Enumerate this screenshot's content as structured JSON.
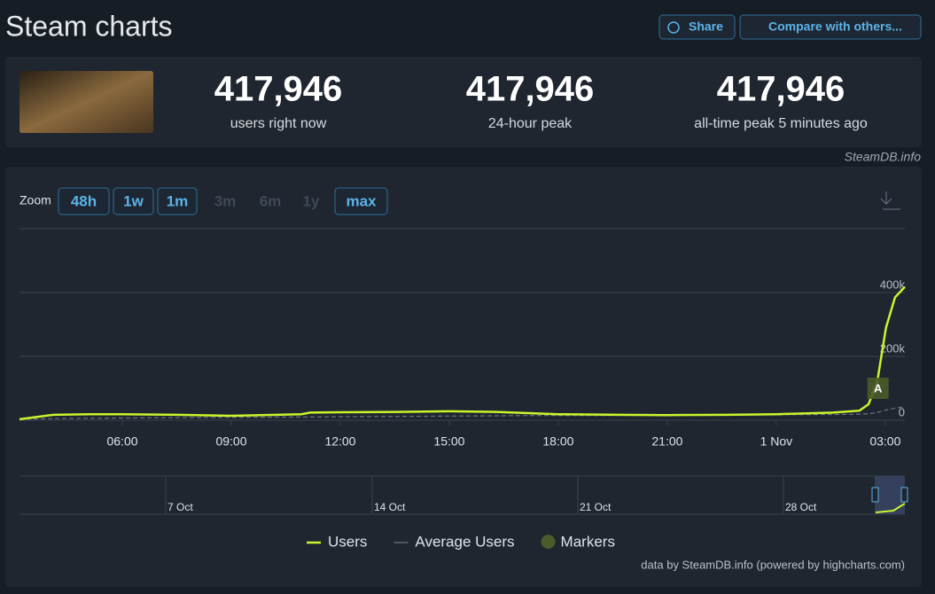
{
  "header": {
    "title": "Steam charts",
    "buttons": [
      "Share",
      "Compare with others..."
    ]
  },
  "stats": [
    {
      "value": "417,946",
      "label": "users right now"
    },
    {
      "value": "417,946",
      "label": "24-hour peak"
    },
    {
      "value": "417,946",
      "label": "all-time peak 5 minutes ago"
    }
  ],
  "credit_top": "SteamDB.info",
  "zoom": {
    "label": "Zoom",
    "options": [
      "48h",
      "1w",
      "1m",
      "3m",
      "6m",
      "1y",
      "max"
    ],
    "enabled": [
      true,
      true,
      true,
      false,
      false,
      false,
      true
    ]
  },
  "chart_data": {
    "type": "line",
    "x": [
      3.17,
      4.1,
      5.07,
      6,
      7.51,
      9,
      10.93,
      11.17,
      12,
      13.61,
      15,
      16.29,
      18,
      19.71,
      21,
      22.63,
      24,
      25.56,
      26.29,
      26.54,
      26.78,
      27.02,
      27.27,
      27.54
    ],
    "series": [
      {
        "name": "Users",
        "color": "#c8f52c",
        "values": [
          3000,
          17000,
          19000,
          19000,
          17000,
          14000,
          19000,
          24000,
          25000,
          26000,
          28000,
          26000,
          19000,
          17000,
          16000,
          17000,
          19000,
          24000,
          30000,
          50000,
          120000,
          290000,
          385000,
          417946
        ]
      },
      {
        "name": "Average Users",
        "color": "#6b7480",
        "values": [
          3000,
          5000,
          6000,
          7000,
          8000,
          9000,
          10000,
          10000,
          11000,
          12000,
          13000,
          14000,
          15000,
          15000,
          16000,
          16000,
          17000,
          18000,
          19000,
          20000,
          24000,
          32000,
          38000,
          42000
        ]
      }
    ],
    "xlim": [
      3.17,
      27.54
    ],
    "xticks": [
      {
        "value": 6,
        "label": "06:00"
      },
      {
        "value": 9,
        "label": "09:00"
      },
      {
        "value": 12,
        "label": "12:00"
      },
      {
        "value": 15,
        "label": "15:00"
      },
      {
        "value": 18,
        "label": "18:00"
      },
      {
        "value": 21,
        "label": "21:00"
      },
      {
        "value": 24,
        "label": "1 Nov"
      },
      {
        "value": 27,
        "label": "03:00"
      }
    ],
    "ylim": [
      0,
      600000
    ],
    "yticks": [
      0,
      {
        "value": 200000,
        "label": "200k"
      },
      {
        "value": 400000,
        "label": "400k"
      }
    ],
    "grid": true,
    "annotations": [
      {
        "label": "A",
        "x": 26.8,
        "y": 100000
      }
    ],
    "markers_legend": "Markers",
    "navigator_labels": [
      "7 Oct",
      "14 Oct",
      "21 Oct",
      "28 Oct"
    ],
    "credit": "data by SteamDB.info (powered by highcharts.com)"
  }
}
